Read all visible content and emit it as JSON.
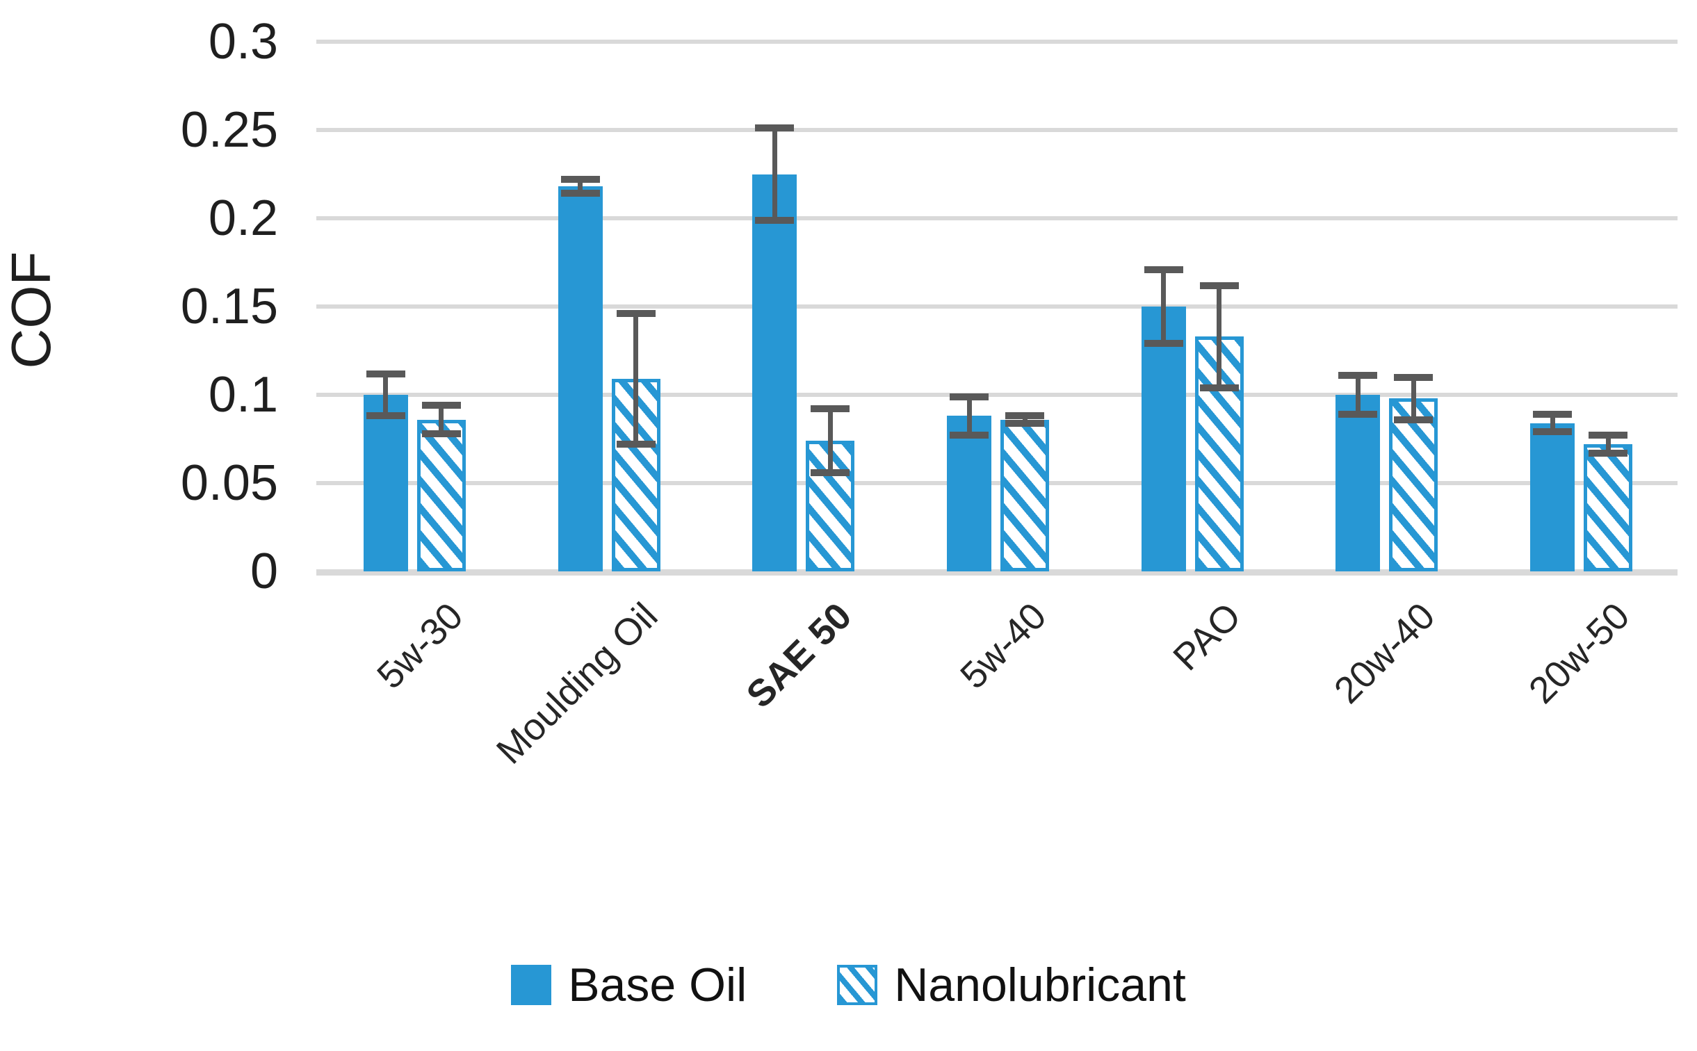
{
  "chart_data": {
    "type": "bar",
    "title": "",
    "xlabel": "",
    "ylabel": "COF",
    "ylim": [
      0,
      0.3
    ],
    "yticks": [
      "0",
      "0.05",
      "0.1",
      "0.15",
      "0.2",
      "0.25",
      "0.3"
    ],
    "grid": true,
    "legend_position": "bottom",
    "categories": [
      {
        "label": "5w-30",
        "bold": false
      },
      {
        "label": "Moulding Oil",
        "bold": false
      },
      {
        "label": "SAE 50",
        "bold": true
      },
      {
        "label": "5w-40",
        "bold": false
      },
      {
        "label": "PAO",
        "bold": false
      },
      {
        "label": "20w-40",
        "bold": false
      },
      {
        "label": "20w-50",
        "bold": false
      }
    ],
    "series": [
      {
        "name": "Base Oil",
        "style": "solid",
        "values": [
          0.1,
          0.218,
          0.225,
          0.088,
          0.15,
          0.1,
          0.084
        ],
        "errors": [
          0.012,
          0.004,
          0.026,
          0.011,
          0.021,
          0.011,
          0.005
        ]
      },
      {
        "name": "Nanolubricant",
        "style": "hatched",
        "values": [
          0.086,
          0.109,
          0.074,
          0.086,
          0.133,
          0.098,
          0.072
        ],
        "errors": [
          0.008,
          0.037,
          0.018,
          0.002,
          0.029,
          0.012,
          0.005
        ]
      }
    ],
    "colors": {
      "bar": "#2797d4",
      "error_bar": "#595959",
      "gridline": "#d9d9d9",
      "text": "#1f1f1f"
    }
  }
}
